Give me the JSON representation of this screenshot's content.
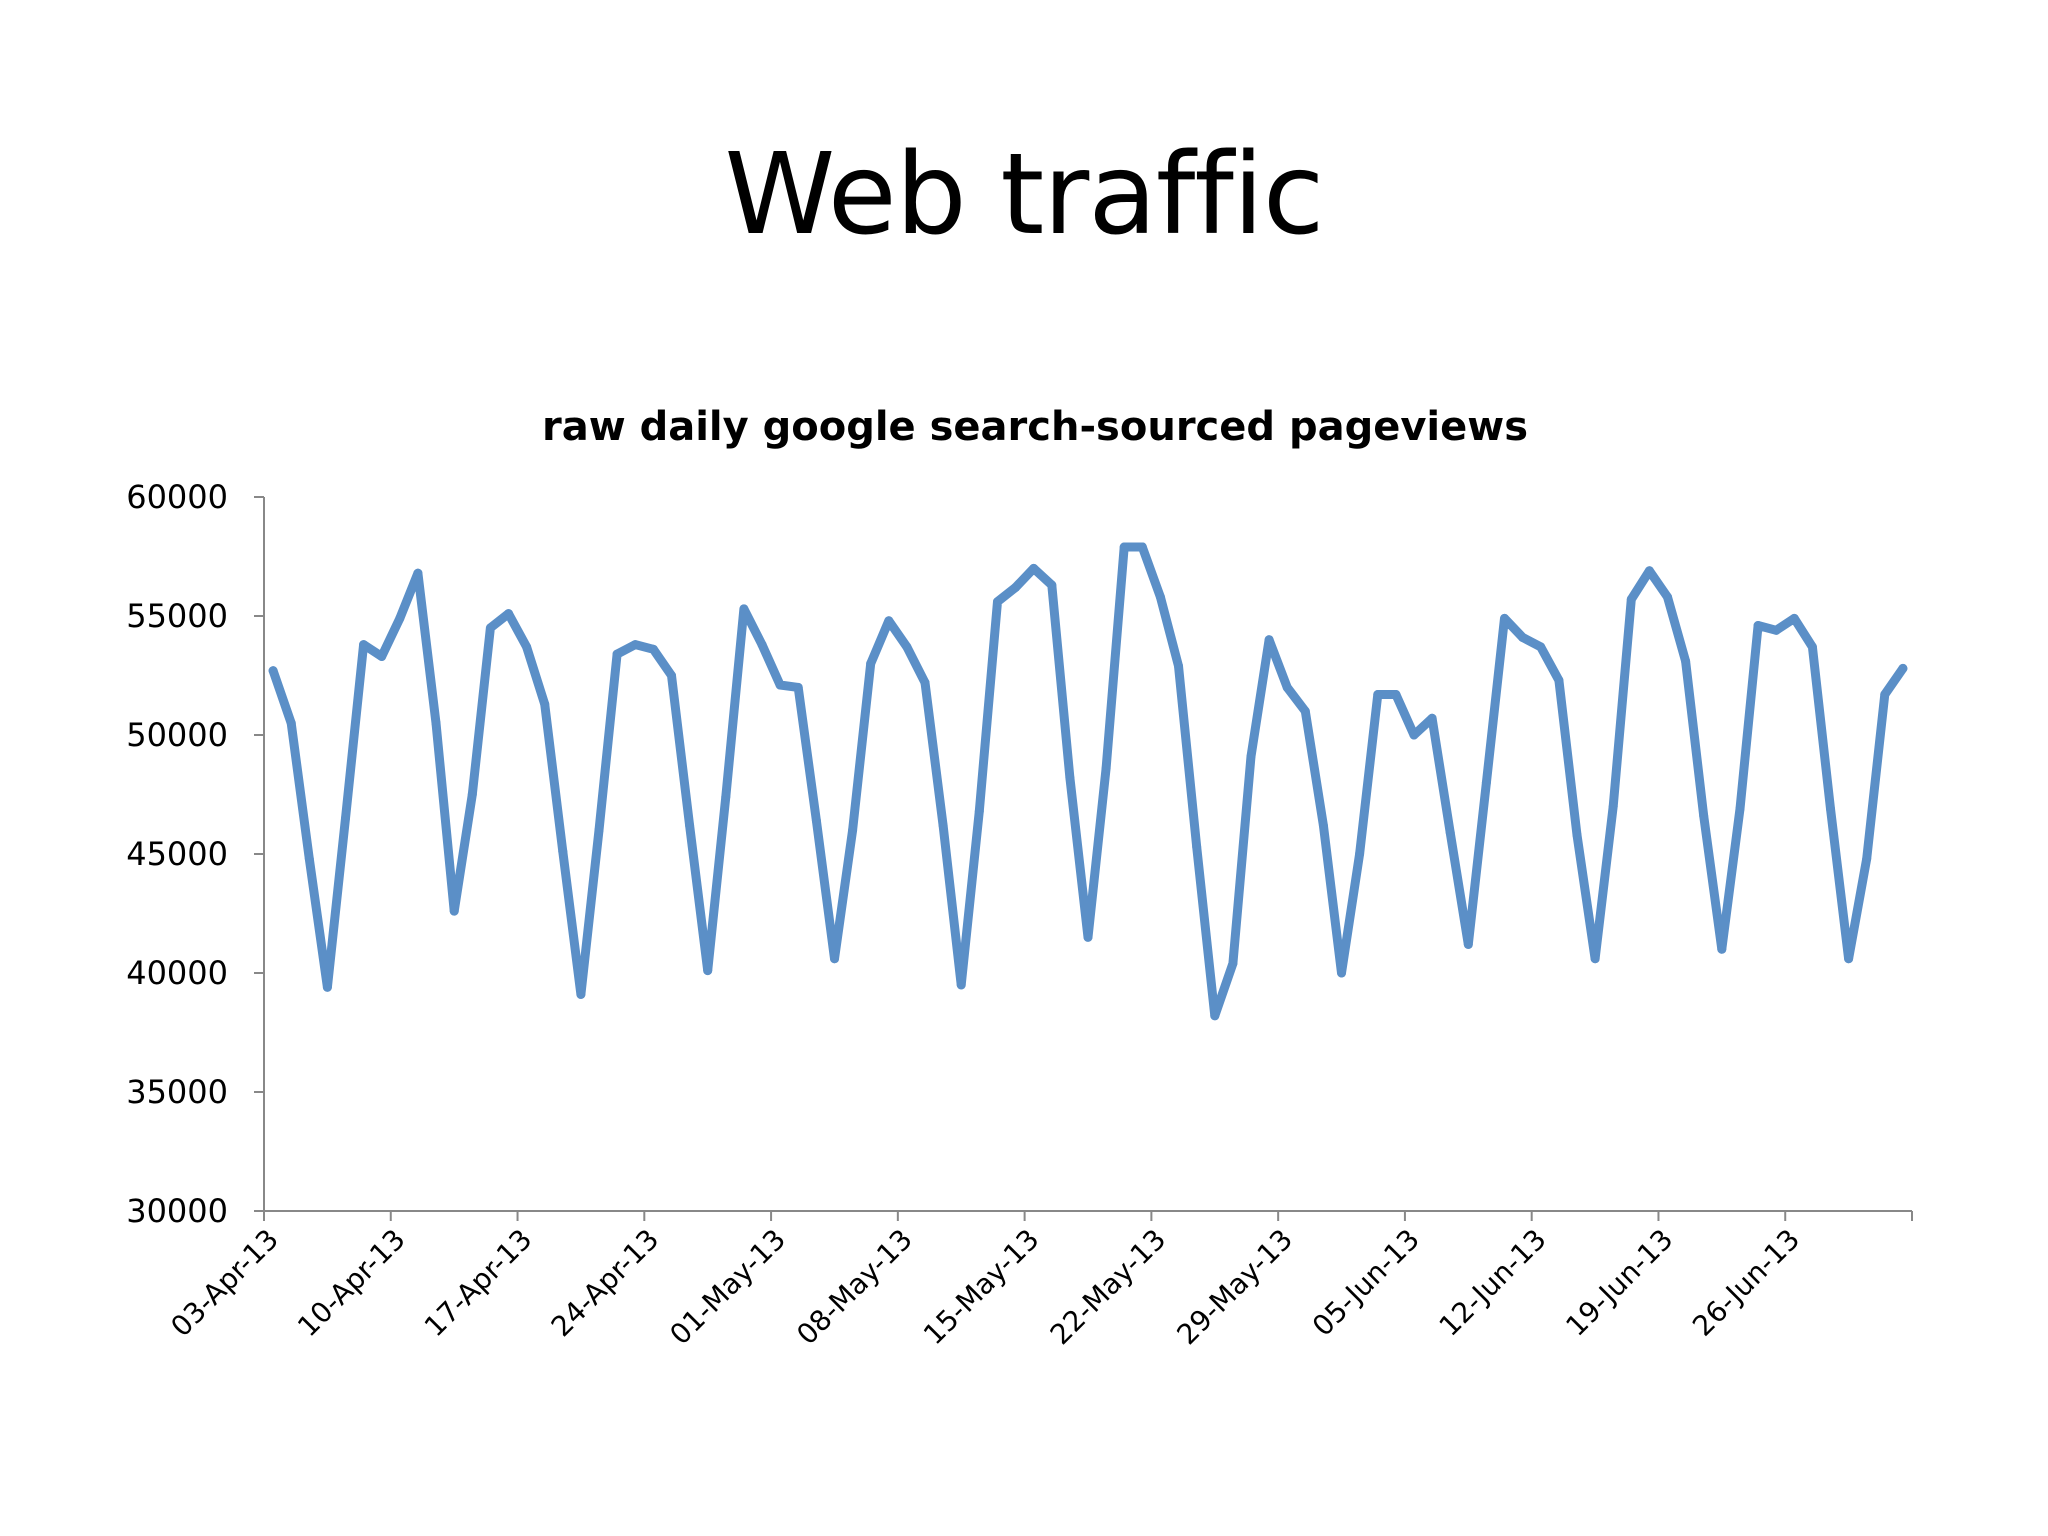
{
  "slide": {
    "title": "Web traffic"
  },
  "chart_data": {
    "type": "line",
    "title": "raw daily google search-sourced pageviews",
    "xlabel": "",
    "ylabel": "",
    "ylim": [
      30000,
      60000
    ],
    "yticks": [
      30000,
      35000,
      40000,
      45000,
      50000,
      55000,
      60000
    ],
    "xticks": [
      "03-Apr-13",
      "10-Apr-13",
      "17-Apr-13",
      "24-Apr-13",
      "01-May-13",
      "08-May-13",
      "15-May-13",
      "22-May-13",
      "29-May-13",
      "05-Jun-13",
      "12-Jun-13",
      "19-Jun-13",
      "26-Jun-13"
    ],
    "x_start": "03-Apr-13",
    "grid": false,
    "series": [
      {
        "color": "#5b8fc7",
        "values": [
          52700,
          50500,
          44800,
          39400,
          46500,
          53800,
          53300,
          54900,
          56800,
          50500,
          42600,
          47500,
          54500,
          55100,
          53700,
          51300,
          45100,
          39100,
          46000,
          53400,
          53800,
          53600,
          52500,
          46200,
          40100,
          47400,
          55300,
          53800,
          52100,
          52000,
          46400,
          40600,
          46000,
          53000,
          54800,
          53700,
          52200,
          46200,
          39500,
          46800,
          55600,
          56200,
          57000,
          56300,
          48200,
          41500,
          48600,
          57900,
          57900,
          55800,
          52900,
          45300,
          38200,
          40400,
          49100,
          54000,
          52000,
          51000,
          46200,
          40000,
          45000,
          51700,
          51700,
          50000,
          50700,
          45900,
          41200,
          48000,
          54900,
          54100,
          53700,
          52300,
          45800,
          40600,
          47000,
          55700,
          56900,
          55800,
          53100,
          46600,
          41000,
          46900,
          54600,
          54400,
          54900,
          53700,
          46900,
          40600,
          44800,
          51700,
          52800
        ]
      }
    ]
  }
}
